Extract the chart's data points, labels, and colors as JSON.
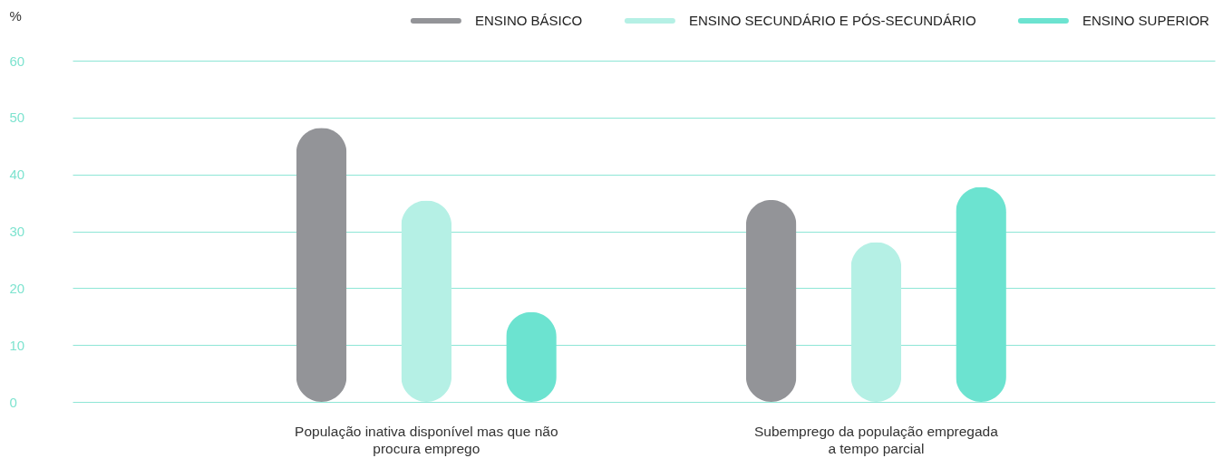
{
  "chart_data": {
    "type": "bar",
    "categories": [
      "População inativa disponível mas que não\nprocura emprego",
      "Subemprego da população empregada\na tempo parcial"
    ],
    "ylabel": "%",
    "series": [
      {
        "name": "ENSINO BÁSICO",
        "color": "#939498",
        "values": [
          48.2,
          35.5
        ]
      },
      {
        "name": "ENSINO SECUNDÁRIO E PÓS-SECUNDÁRIO",
        "color": "#b5f0e5",
        "values": [
          35.4,
          28.1
        ]
      },
      {
        "name": "ENSINO SUPERIOR",
        "color": "#6ce3d0",
        "values": [
          15.8,
          37.8
        ]
      }
    ],
    "ylim": [
      0,
      60
    ],
    "yticks": [
      0,
      10,
      20,
      30,
      40,
      50,
      60
    ],
    "grid": "y",
    "legend": "top right"
  }
}
